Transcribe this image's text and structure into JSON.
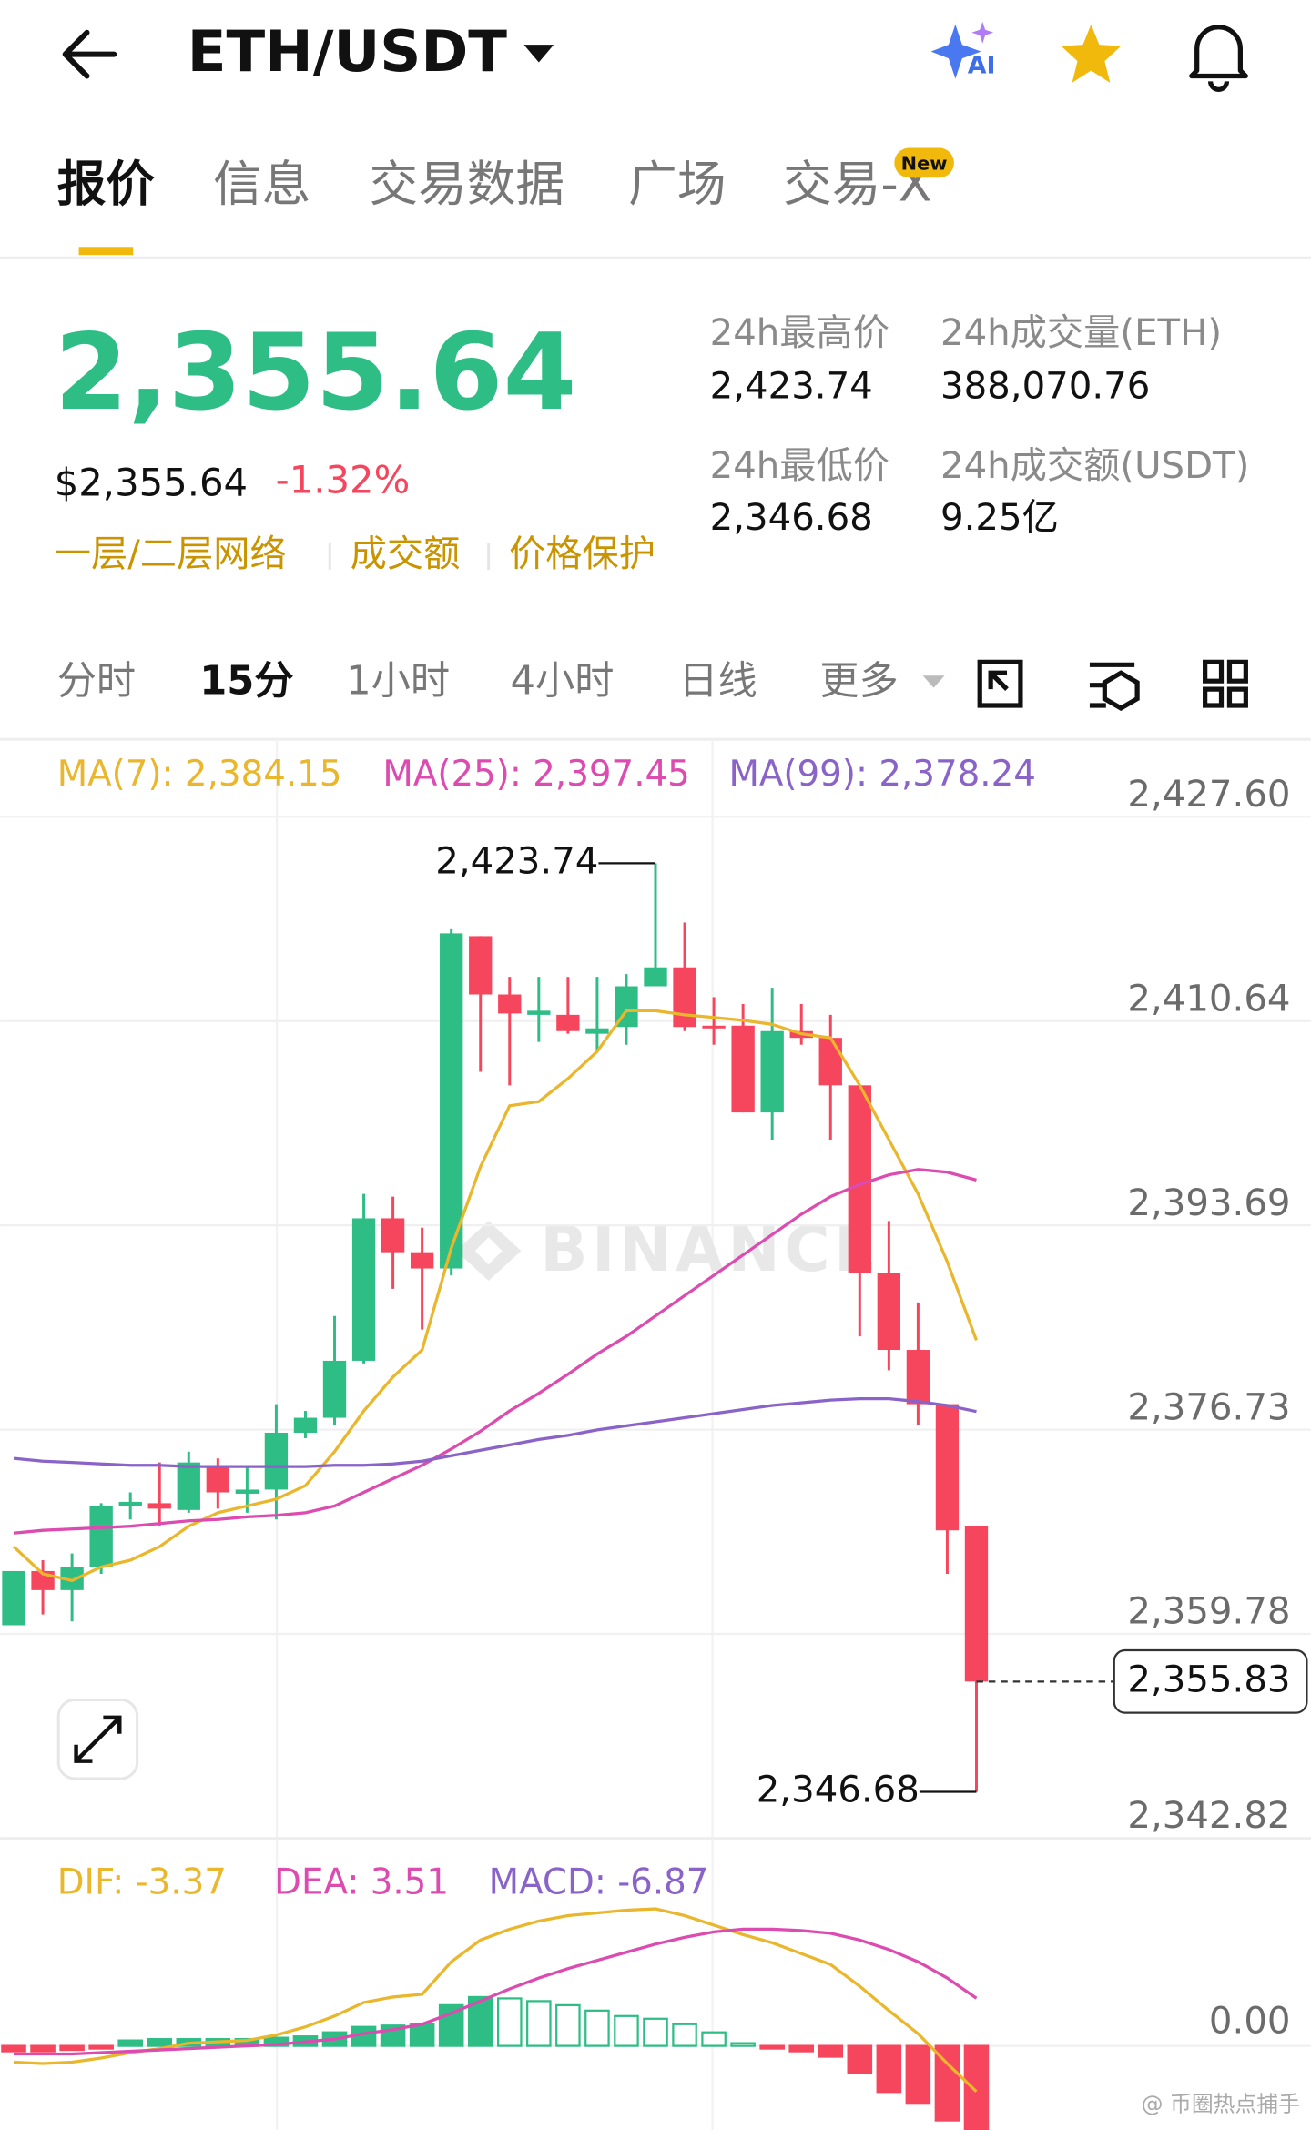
{
  "header": {
    "pair": "ETH/USDT",
    "ai": "AI"
  },
  "tabs": [
    "报价",
    "信息",
    "交易数据",
    "广场",
    "交易-X"
  ],
  "tab_badge": "New",
  "ticker": {
    "price": "2,355.64",
    "usd_price": "$2,355.64",
    "change": "-1.32%",
    "tags": [
      "一层/二层网络",
      "成交额",
      "价格保护"
    ],
    "stats": [
      {
        "label": "24h最高价",
        "value": "2,423.74"
      },
      {
        "label": "24h成交量(ETH)",
        "value": "388,070.76"
      },
      {
        "label": "24h最低价",
        "value": "2,346.68"
      },
      {
        "label": "24h成交额(USDT)",
        "value": "9.25亿"
      }
    ]
  },
  "intervals": [
    "分时",
    "15分",
    "1小时",
    "4小时",
    "日线",
    "更多"
  ],
  "watermark": "BINANCE",
  "footer_watermark": "@ 币圈热点捕手",
  "chart_data": [
    {
      "type": "candlestick",
      "up_color": "#2ebd85",
      "down_color": "#f6465d",
      "open": [
        2360.5,
        2365.0,
        2363.42,
        2365.34,
        2370.4,
        2370.63,
        2370.07,
        2373.78,
        2371.42,
        2371.76,
        2376.48,
        2377.72,
        2382.45,
        2394.27,
        2391.46,
        2390.11,
        2417.69,
        2412.85,
        2411.16,
        2411.16,
        2409.59,
        2410.15,
        2413.53,
        2415.1,
        2410.26,
        2410.26,
        2403.06,
        2409.81,
        2409.25,
        2405.31,
        2389.77,
        2383.35,
        2378.85,
        2368.72
      ],
      "high": [
        2365.0,
        2365.9,
        2366.46,
        2370.63,
        2371.53,
        2374.01,
        2374.91,
        2374.35,
        2373.78,
        2378.85,
        2378.29,
        2386.17,
        2396.3,
        2396.07,
        2393.49,
        2418.26,
        2417.69,
        2414.31,
        2414.31,
        2414.31,
        2414.31,
        2414.54,
        2423.74,
        2418.82,
        2412.63,
        2412.06,
        2413.41,
        2412.06,
        2411.16,
        2405.31,
        2394.05,
        2387.29,
        2378.85,
        2368.72
      ],
      "low": [
        2360.5,
        2361.4,
        2360.83,
        2364.77,
        2369.28,
        2368.72,
        2369.84,
        2370.18,
        2369.84,
        2369.28,
        2376.03,
        2377.16,
        2382.23,
        2388.42,
        2385.04,
        2389.54,
        2406.43,
        2405.31,
        2408.91,
        2409.59,
        2408.12,
        2408.68,
        2413.53,
        2409.81,
        2408.68,
        2403.06,
        2400.8,
        2408.68,
        2400.8,
        2384.48,
        2381.66,
        2377.16,
        2364.77,
        2346.68
      ],
      "close": [
        2365.0,
        2363.42,
        2365.34,
        2370.4,
        2370.74,
        2370.18,
        2374.01,
        2371.53,
        2371.76,
        2376.48,
        2377.72,
        2382.45,
        2394.27,
        2391.46,
        2390.11,
        2417.92,
        2412.85,
        2411.27,
        2411.5,
        2409.81,
        2410.04,
        2413.53,
        2415.1,
        2410.15,
        2410.04,
        2403.06,
        2409.81,
        2409.25,
        2405.31,
        2389.77,
        2383.35,
        2378.85,
        2368.38,
        2355.83
      ],
      "series": [
        {
          "name": "MA(7): 2,384.15",
          "color": "#e9b62c",
          "values": [
            2367.03,
            2364.77,
            2364.21,
            2365.34,
            2365.9,
            2367.03,
            2368.72,
            2369.84,
            2370.4,
            2370.97,
            2372.09,
            2374.91,
            2378.29,
            2381.1,
            2383.35,
            2391.8,
            2398.55,
            2403.62,
            2403.96,
            2405.87,
            2408.12,
            2411.5,
            2411.5,
            2411.16,
            2410.94,
            2410.71,
            2410.37,
            2409.59,
            2409.25,
            2405.31,
            2400.8,
            2396.3,
            2390.67,
            2384.15
          ]
        },
        {
          "name": "MA(25): 2,397.45",
          "color": "#dc4bb0",
          "values": [
            2368.15,
            2368.38,
            2368.49,
            2368.6,
            2368.72,
            2368.94,
            2369.17,
            2369.28,
            2369.5,
            2369.62,
            2369.84,
            2370.4,
            2371.53,
            2372.66,
            2373.78,
            2375.13,
            2376.6,
            2378.29,
            2379.75,
            2381.33,
            2383.01,
            2384.48,
            2386.17,
            2387.86,
            2389.54,
            2391.23,
            2392.92,
            2394.61,
            2396.07,
            2397.09,
            2397.88,
            2398.33,
            2398.1,
            2397.45
          ]
        },
        {
          "name": "MA(99): 2,378.24",
          "color": "#8a63c9",
          "values": [
            2374.35,
            2374.12,
            2374.01,
            2373.89,
            2373.78,
            2373.78,
            2373.67,
            2373.67,
            2373.67,
            2373.67,
            2373.67,
            2373.78,
            2373.78,
            2373.89,
            2374.12,
            2374.57,
            2375.02,
            2375.47,
            2375.92,
            2376.26,
            2376.71,
            2377.05,
            2377.38,
            2377.72,
            2378.06,
            2378.4,
            2378.74,
            2378.96,
            2379.19,
            2379.3,
            2379.3,
            2379.07,
            2378.74,
            2378.24
          ]
        }
      ],
      "ylim": [
        2342.82,
        2427.6
      ],
      "yticks": [
        {
          "value": 2427.6,
          "label": "2,427.60"
        },
        {
          "value": 2410.64,
          "label": "2,410.64"
        },
        {
          "value": 2393.69,
          "label": "2,393.69"
        },
        {
          "value": 2376.73,
          "label": "2,376.73"
        },
        {
          "value": 2359.78,
          "label": "2,359.78"
        },
        {
          "value": 2342.82,
          "label": "2,342.82"
        }
      ],
      "last_price": {
        "value": 2355.83,
        "label": "2,355.83"
      },
      "annotations": [
        {
          "value": 2423.74,
          "label": "2,423.74"
        },
        {
          "value": 2346.68,
          "label": "2,346.68"
        }
      ],
      "grid": true
    },
    {
      "type": "macd",
      "series": [
        {
          "name": "DIF: -3.37",
          "type": "line",
          "color": "#e9b62c",
          "values": [
            -1.2,
            -1.3,
            -1.2,
            -0.9,
            -0.5,
            -0.2,
            0.2,
            0.3,
            0.4,
            0.8,
            1.4,
            2.2,
            3.2,
            3.6,
            3.8,
            6.2,
            7.8,
            8.6,
            9.2,
            9.6,
            9.8,
            10.0,
            10.1,
            9.6,
            8.9,
            8.2,
            7.6,
            6.8,
            6.0,
            4.4,
            2.6,
            0.9,
            -1.3,
            -3.37
          ]
        },
        {
          "name": "DEA: 3.51",
          "type": "line",
          "color": "#dc4bb0",
          "values": [
            -0.6,
            -0.6,
            -0.6,
            -0.5,
            -0.4,
            -0.3,
            -0.2,
            -0.1,
            0.0,
            0.1,
            0.3,
            0.5,
            0.9,
            1.2,
            1.6,
            2.4,
            3.3,
            4.2,
            5.0,
            5.7,
            6.3,
            6.9,
            7.5,
            8.0,
            8.4,
            8.6,
            8.6,
            8.5,
            8.3,
            7.8,
            7.1,
            6.2,
            5.0,
            3.51
          ]
        },
        {
          "name": "MACD: -6.87",
          "type": "bar",
          "color": "#8a63c9",
          "up_color": "#2ebd85",
          "down_color": "#f6465d",
          "values": [
            -0.4,
            -0.4,
            -0.3,
            -0.2,
            0.4,
            0.5,
            0.5,
            0.5,
            0.5,
            0.6,
            0.7,
            1.0,
            1.4,
            1.5,
            1.6,
            3.0,
            3.6,
            3.5,
            3.3,
            3.0,
            2.6,
            2.2,
            2.0,
            1.6,
            1.0,
            0.2,
            -0.2,
            -0.4,
            -0.8,
            -2.0,
            -3.4,
            -4.2,
            -5.5,
            -6.87
          ]
        }
      ],
      "ylim": [
        -6.2,
        12.8
      ],
      "yticks": [
        {
          "value": 0,
          "label": "0.00"
        }
      ]
    }
  ]
}
